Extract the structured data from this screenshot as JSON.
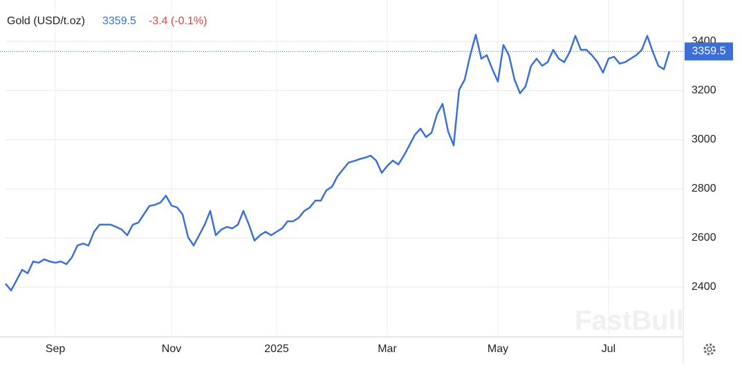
{
  "chart_data": {
    "type": "line",
    "title": "Gold (USD/t.oz)",
    "price": 3359.5,
    "change": "-3.4 (-0.1%)",
    "watermark": "FastBull",
    "categories": [
      null,
      null,
      null,
      null,
      null,
      null,
      null,
      null,
      null,
      "Sep",
      null,
      null,
      null,
      null,
      null,
      null,
      null,
      null,
      null,
      null,
      null,
      null,
      null,
      null,
      null,
      null,
      null,
      null,
      null,
      null,
      "Nov",
      null,
      null,
      null,
      null,
      null,
      null,
      null,
      null,
      null,
      null,
      null,
      null,
      null,
      null,
      null,
      null,
      null,
      null,
      "2025",
      null,
      null,
      null,
      null,
      null,
      null,
      null,
      null,
      null,
      null,
      null,
      null,
      null,
      null,
      null,
      null,
      null,
      null,
      null,
      "Mar",
      null,
      null,
      null,
      null,
      null,
      null,
      null,
      null,
      null,
      null,
      null,
      null,
      null,
      null,
      null,
      null,
      null,
      null,
      null,
      "May",
      null,
      null,
      null,
      null,
      null,
      null,
      null,
      null,
      null,
      null,
      null,
      null,
      null,
      null,
      null,
      null,
      null,
      null,
      null,
      "Jul",
      null,
      null,
      null,
      null,
      null,
      null,
      null,
      null,
      null,
      null,
      null
    ],
    "series": [
      {
        "name": "Gold",
        "color": "#3a6fd8",
        "values": [
          2414,
          2386,
          2428,
          2470,
          2456,
          2504,
          2499,
          2513,
          2504,
          2499,
          2504,
          2493,
          2521,
          2569,
          2577,
          2569,
          2625,
          2654,
          2654,
          2654,
          2645,
          2634,
          2611,
          2654,
          2662,
          2696,
          2730,
          2735,
          2744,
          2772,
          2732,
          2724,
          2696,
          2603,
          2569,
          2611,
          2654,
          2710,
          2611,
          2634,
          2645,
          2639,
          2654,
          2710,
          2654,
          2589,
          2611,
          2625,
          2611,
          2625,
          2639,
          2668,
          2668,
          2682,
          2710,
          2724,
          2752,
          2752,
          2794,
          2808,
          2851,
          2879,
          2907,
          2913,
          2921,
          2927,
          2935,
          2915,
          2865,
          2893,
          2915,
          2899,
          2935,
          2977,
          3020,
          3045,
          3011,
          3028,
          3104,
          3146,
          3034,
          2977,
          3203,
          3245,
          3344,
          3428,
          3330,
          3344,
          3287,
          3237,
          3386,
          3344,
          3245,
          3189,
          3217,
          3301,
          3330,
          3301,
          3316,
          3366,
          3330,
          3316,
          3358,
          3423,
          3366,
          3366,
          3344,
          3316,
          3273,
          3330,
          3338,
          3310,
          3316,
          3330,
          3344,
          3366,
          3423,
          3358,
          3301,
          3287,
          3359.5
        ]
      }
    ],
    "ylim": [
      2197,
      3569
    ],
    "yticks": [
      2400,
      2600,
      2800,
      3000,
      3200,
      3400
    ],
    "grid": true
  }
}
